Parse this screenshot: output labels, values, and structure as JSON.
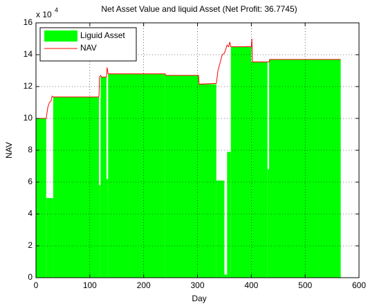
{
  "chart_data": {
    "type": "area_line",
    "title": "Net Asset Value and liquid Asset (Net Profit: 36.7745)",
    "x_label": "Day",
    "y_label": "NAV",
    "y_multiplier": {
      "base": "x 10",
      "exponent": "4"
    },
    "xlim": [
      0,
      600
    ],
    "xticks": [
      0,
      100,
      200,
      300,
      400,
      500,
      600
    ],
    "ylim": [
      0,
      16
    ],
    "yticks": [
      0,
      2,
      4,
      6,
      8,
      10,
      12,
      14,
      16
    ],
    "grid": true,
    "legend": "upper left",
    "series": [
      {
        "name": "Liguid Asset",
        "color": "#00ff00",
        "kind": "step_area",
        "edges": [
          0,
          19,
          32,
          117,
          120,
          131,
          134,
          240,
          302,
          335,
          350,
          355,
          362,
          400,
          430,
          433,
          566
        ],
        "values": [
          10,
          5,
          11.35,
          5.8,
          12.6,
          6.2,
          12.8,
          12.7,
          12.15,
          6.1,
          0.2,
          7.9,
          14.5,
          13.55,
          6.8,
          13.7
        ]
      },
      {
        "name": "NAV",
        "color": "#ff0000",
        "kind": "line",
        "x": [
          0,
          19,
          22,
          25,
          28,
          30,
          32,
          117,
          118,
          120,
          122,
          131,
          132,
          134,
          240,
          241,
          302,
          303,
          335,
          338,
          342,
          346,
          350,
          355,
          358,
          360,
          362,
          400,
          401,
          402,
          433,
          434,
          566
        ],
        "values": [
          10,
          10,
          10.7,
          11,
          11.1,
          11.4,
          11.35,
          11.35,
          12.6,
          12.7,
          12.6,
          12.6,
          13.2,
          12.8,
          12.8,
          12.7,
          12.7,
          12.15,
          12.2,
          13.0,
          13.5,
          14.0,
          14.1,
          14.6,
          14.5,
          14.8,
          14.5,
          14.5,
          15.0,
          13.55,
          13.55,
          13.7,
          13.7
        ]
      }
    ]
  }
}
